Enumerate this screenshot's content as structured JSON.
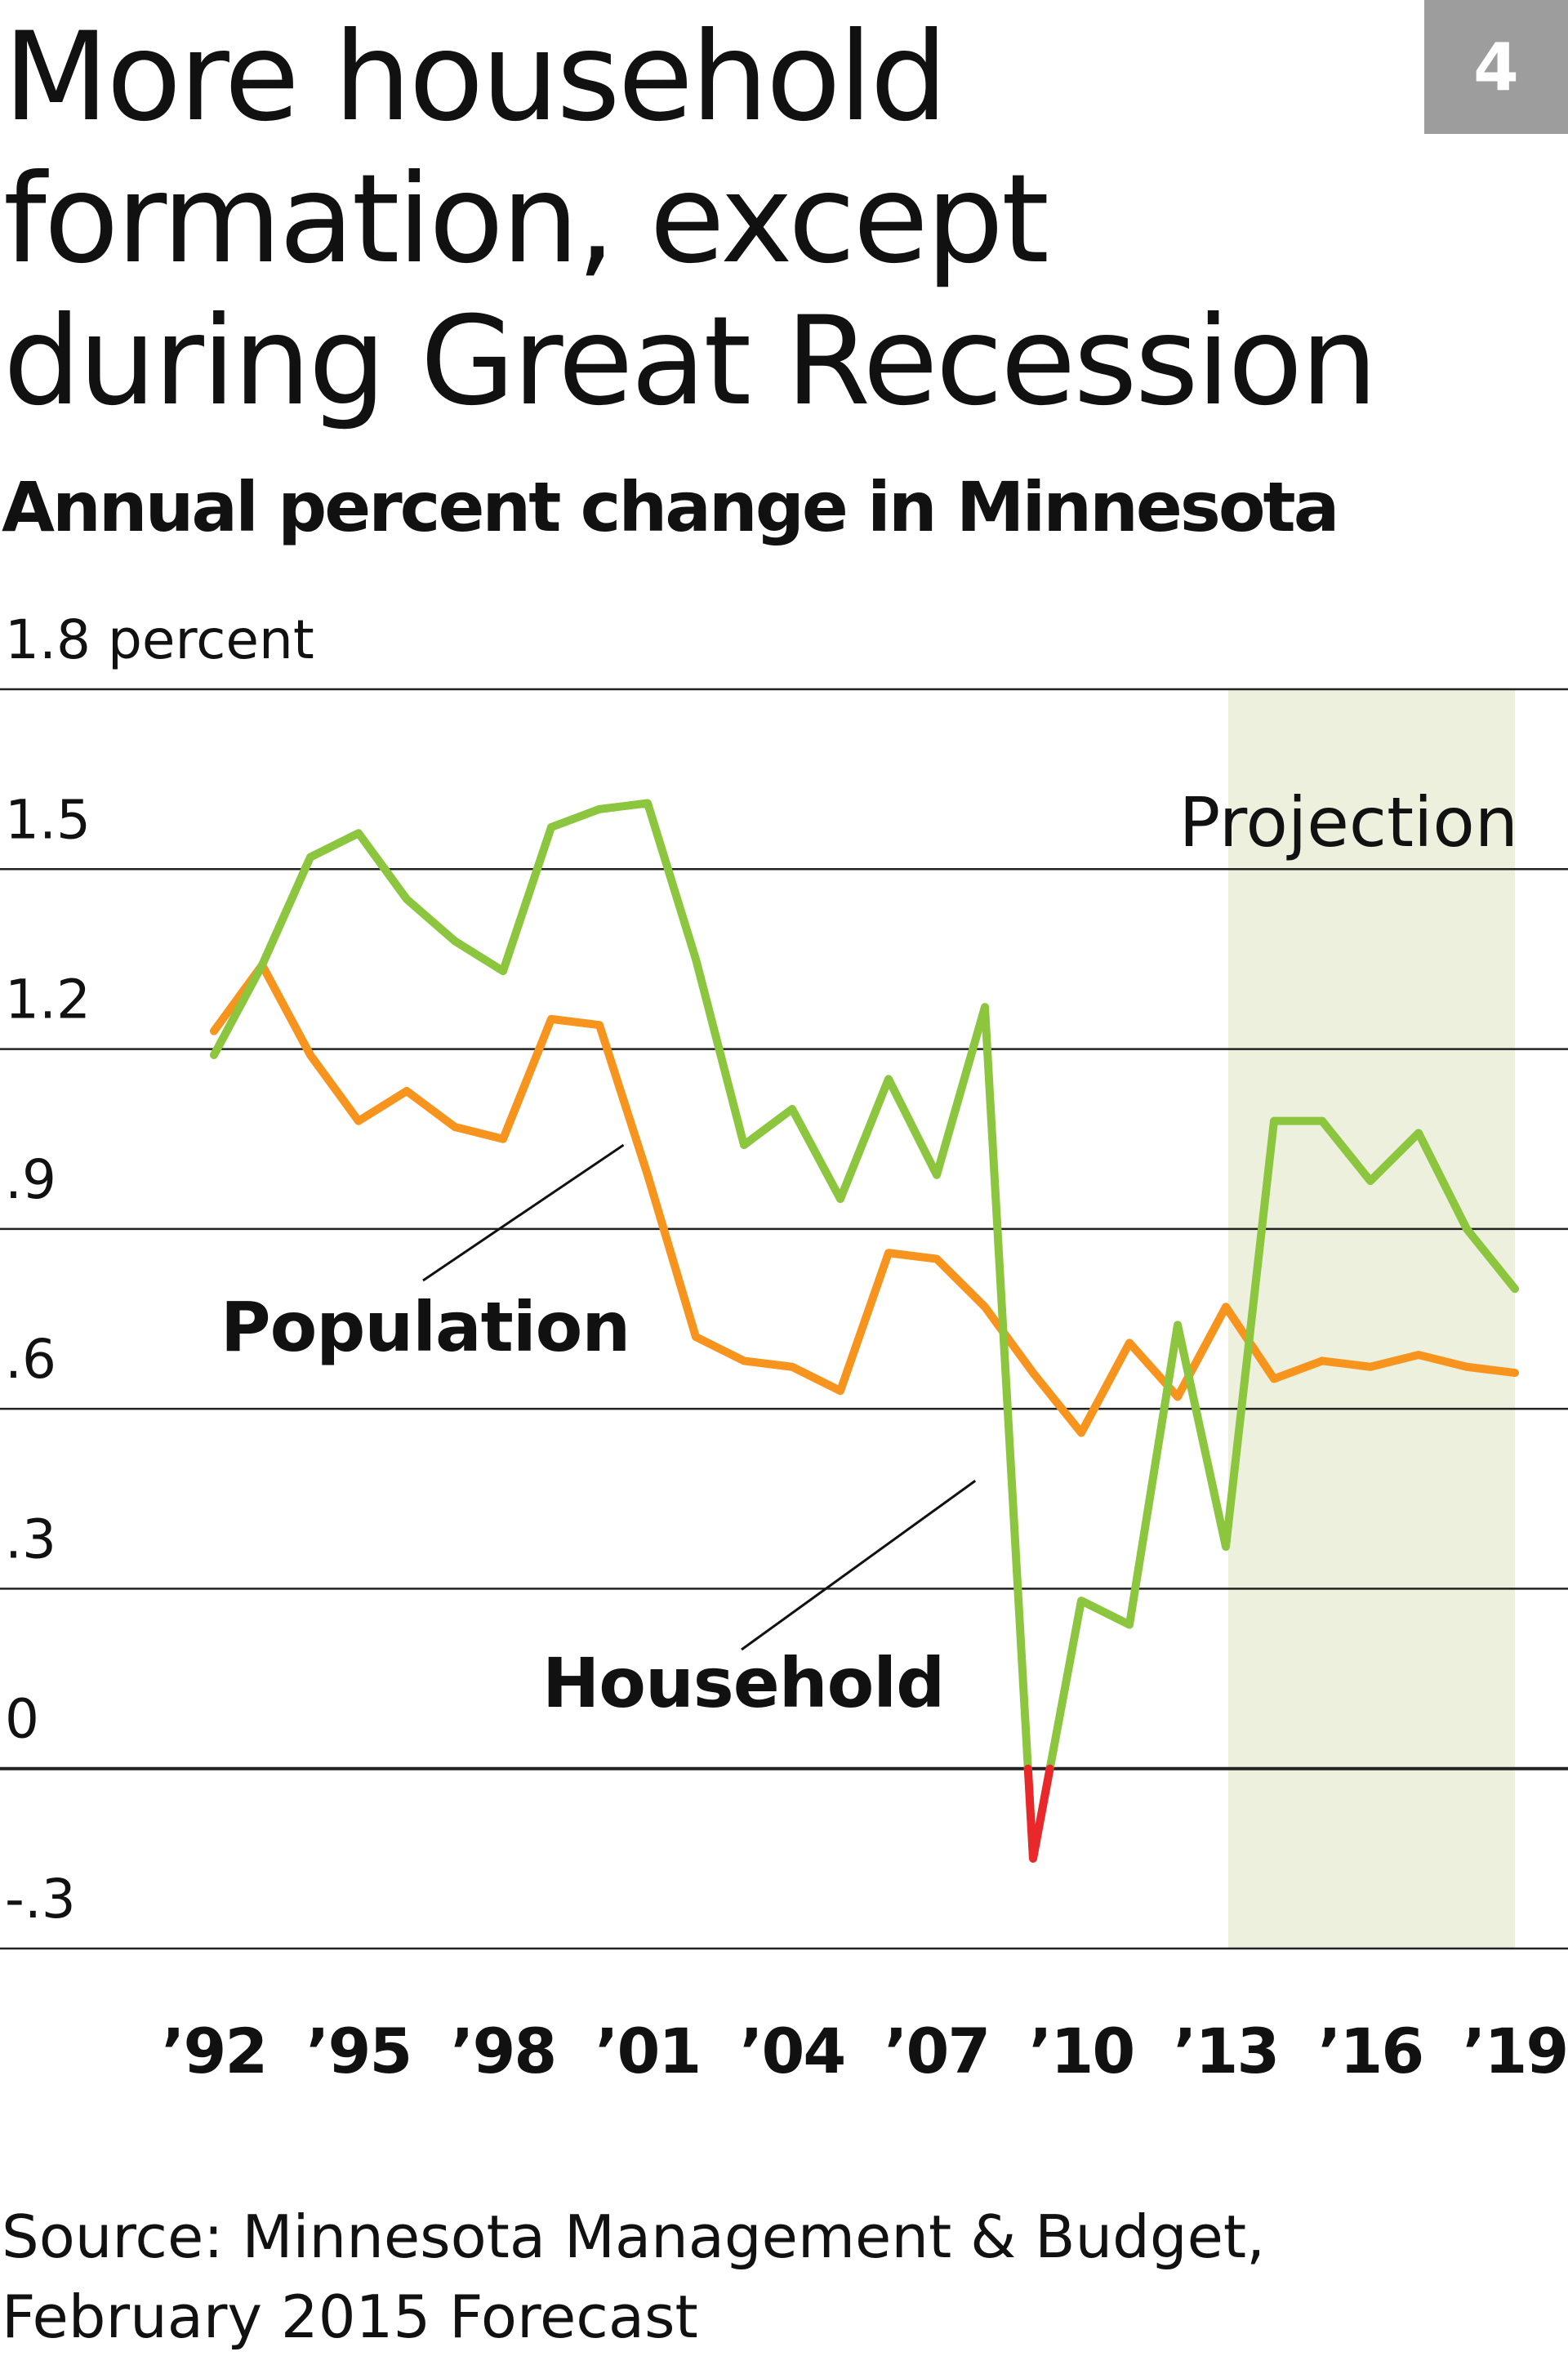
{
  "badge": "4",
  "title": "More household formation, except during Great Recession",
  "subtitle": "Annual percent change in Minnesota",
  "source": "Source: Minnesota Management & Budget, February 2015 Forecast",
  "colors": {
    "household": "#8cc63f",
    "household_negative": "#e8282b",
    "population": "#f7941d",
    "projection_band": "#eef0de",
    "gridline": "#222222"
  },
  "chart_data": {
    "type": "line",
    "x": [
      1992,
      1993,
      1994,
      1995,
      1996,
      1997,
      1998,
      1999,
      2000,
      2001,
      2002,
      2003,
      2004,
      2005,
      2006,
      2007,
      2008,
      2009,
      2010,
      2011,
      2012,
      2013,
      2014,
      2015,
      2016,
      2017,
      2018,
      2019
    ],
    "series": [
      {
        "name": "Household",
        "values": [
          1.19,
          1.34,
          1.52,
          1.56,
          1.45,
          1.38,
          1.33,
          1.57,
          1.6,
          1.61,
          1.35,
          1.04,
          1.1,
          0.95,
          1.15,
          0.99,
          1.27,
          -0.15,
          0.28,
          0.24,
          0.74,
          0.37,
          1.08,
          1.08,
          0.98,
          1.06,
          0.9,
          0.8
        ]
      },
      {
        "name": "Population",
        "values": [
          1.23,
          1.34,
          1.19,
          1.08,
          1.13,
          1.07,
          1.05,
          1.25,
          1.24,
          0.99,
          0.72,
          0.68,
          0.67,
          0.63,
          0.86,
          0.85,
          0.77,
          0.66,
          0.56,
          0.71,
          0.62,
          0.77,
          0.65,
          0.68,
          0.67,
          0.69,
          0.67,
          0.66
        ]
      }
    ],
    "projection_range": [
      2013,
      2019
    ],
    "projection_label": "Projection",
    "xticks": [
      {
        "value": 1992,
        "label": "’92"
      },
      {
        "value": 1995,
        "label": "’95"
      },
      {
        "value": 1998,
        "label": "’98"
      },
      {
        "value": 2001,
        "label": "’01"
      },
      {
        "value": 2004,
        "label": "’04"
      },
      {
        "value": 2007,
        "label": "’07"
      },
      {
        "value": 2010,
        "label": "’10"
      },
      {
        "value": 2013,
        "label": "’13"
      },
      {
        "value": 2016,
        "label": "’16"
      },
      {
        "value": 2019,
        "label": "’19"
      }
    ],
    "yticks": [
      {
        "value": 1.8,
        "label": "1.8 percent"
      },
      {
        "value": 1.5,
        "label": "1.5"
      },
      {
        "value": 1.2,
        "label": "1.2"
      },
      {
        "value": 0.9,
        "label": ".9"
      },
      {
        "value": 0.6,
        "label": ".6"
      },
      {
        "value": 0.3,
        "label": ".3"
      },
      {
        "value": 0,
        "label": "0"
      },
      {
        "value": -0.3,
        "label": "-.3"
      }
    ],
    "ylim": [
      -0.3,
      1.8
    ],
    "grid": true,
    "annotations": [
      {
        "text": "Population",
        "series": "Population"
      },
      {
        "text": "Household",
        "series": "Household"
      }
    ]
  }
}
